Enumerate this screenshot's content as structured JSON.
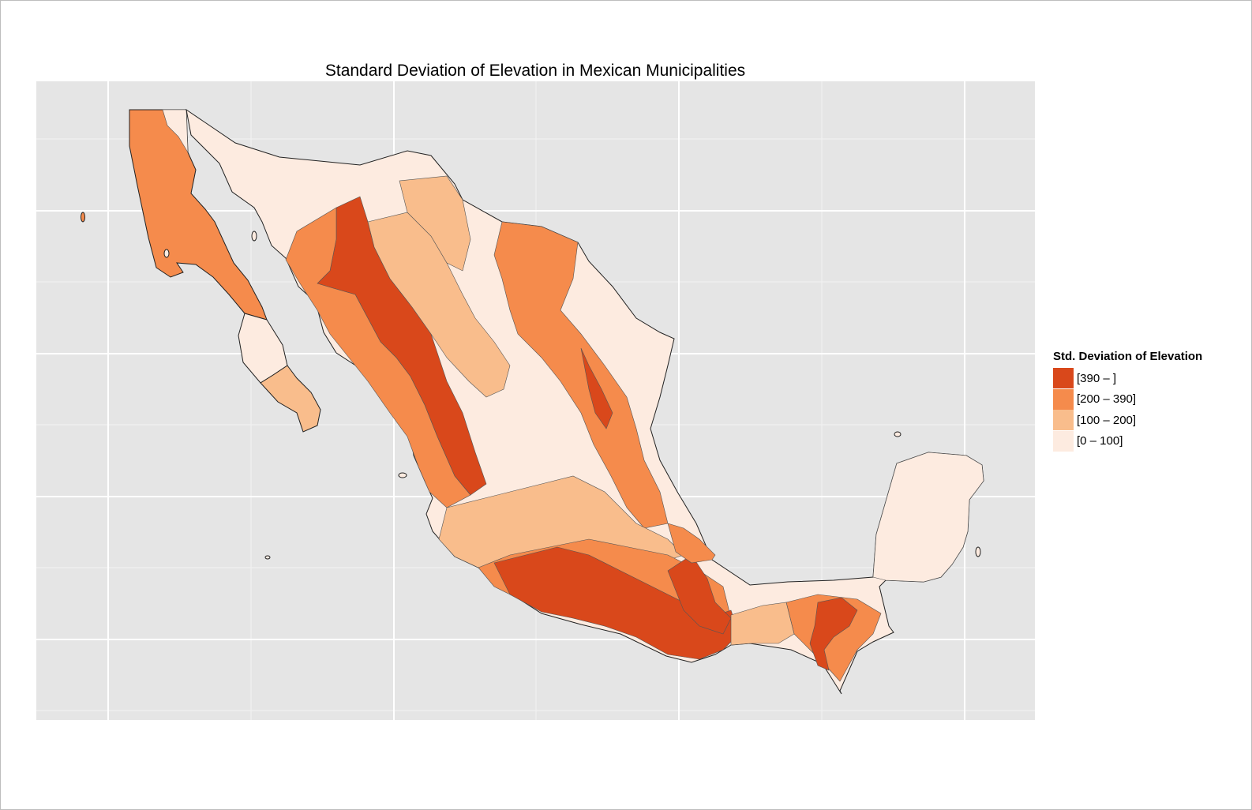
{
  "title": "Standard Deviation of Elevation in Mexican Municipalities",
  "legend": {
    "title": "Std. Deviation of Elevation",
    "items": [
      {
        "label": "[390 – ]",
        "color": "#d9481b"
      },
      {
        "label": "[200 – 390]",
        "color": "#f58b4c"
      },
      {
        "label": "[100 – 200]",
        "color": "#f9bd8c"
      },
      {
        "label": "[0 – 100]",
        "color": "#fdebe0"
      }
    ]
  },
  "colors": {
    "panel_background": "#e5e5e5",
    "grid_major": "#ffffff",
    "grid_minor": "#f2f2f2",
    "border": "#222222"
  }
}
